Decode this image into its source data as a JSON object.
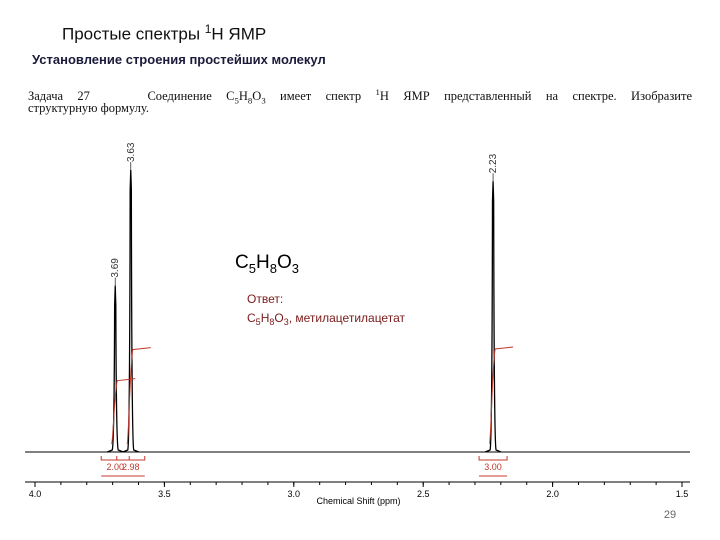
{
  "header": {
    "title": [
      "Простые спектры ",
      "1",
      "H ЯМР"
    ],
    "subtitle": "Установление строения простейших молекул"
  },
  "task": [
    "Задача 27",
    "Соединение C",
    "5",
    "H",
    "8",
    "O",
    "3",
    " имеет спектр ",
    "1",
    "H ЯМР представленный на спектре. Изобразите",
    "структурную формулу."
  ],
  "page_number": "29",
  "chart_data": {
    "type": "spectrum",
    "xlabel": "Chemical Shift (ppm)",
    "xlim": [
      4.0,
      1.5
    ],
    "xticks": [
      {
        "value": 4.0,
        "label": "4.0"
      },
      3.5,
      {
        "value": 3.0,
        "label": "3.0"
      },
      2.5,
      {
        "value": 2.0,
        "label": "2.0"
      },
      1.5
    ],
    "peaks": {
      "shifts": [
        3.69,
        3.63,
        2.23
      ],
      "heights": [
        59,
        100,
        96
      ]
    },
    "integrals": {
      "shifts": [
        3.69,
        3.63,
        2.23
      ],
      "values": [
        2,
        2.98,
        3
      ],
      "value_labels": [
        "2.00",
        "2.98",
        "3.00"
      ]
    },
    "color": "#000000",
    "integral_color": "#c0392b",
    "formula": [
      "C",
      "5",
      "H",
      "8",
      "O",
      "3"
    ],
    "answer": [
      "Ответ:",
      "C",
      "5",
      "H",
      "8",
      "O",
      "3",
      ", метилацетилацетат"
    ]
  }
}
